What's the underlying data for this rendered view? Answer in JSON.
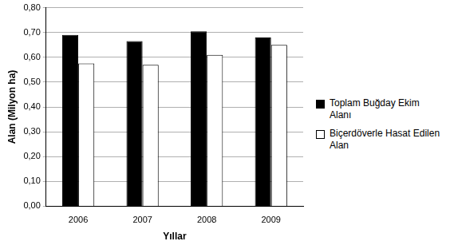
{
  "chart_data": {
    "type": "bar",
    "x_label": "Yıllar",
    "y_label": "Alan (Milyon ha)",
    "categories": [
      "2006",
      "2007",
      "2008",
      "2009"
    ],
    "series": [
      {
        "name": "Toplam Buğday Ekim Alanı",
        "color": "#000000",
        "values": [
          0.69,
          0.665,
          0.705,
          0.68
        ]
      },
      {
        "name": "Biçerdöverle Hasat Edilen Alan",
        "color": "#ffffff",
        "values": [
          0.575,
          0.57,
          0.61,
          0.65
        ]
      }
    ],
    "ylim": [
      0,
      0.8
    ],
    "yticks": [
      {
        "value": 0,
        "label": "0,00"
      },
      {
        "value": 0.1,
        "label": "0,10"
      },
      {
        "value": 0.2,
        "label": "0,20"
      },
      {
        "value": 0.3,
        "label": "0,30"
      },
      {
        "value": 0.4,
        "label": "0,40"
      },
      {
        "value": 0.5,
        "label": "0,50"
      },
      {
        "value": 0.6,
        "label": "0,60"
      },
      {
        "value": 0.7,
        "label": "0,70"
      },
      {
        "value": 0.8,
        "label": "0,80"
      }
    ],
    "grid": true,
    "legend": "right"
  }
}
